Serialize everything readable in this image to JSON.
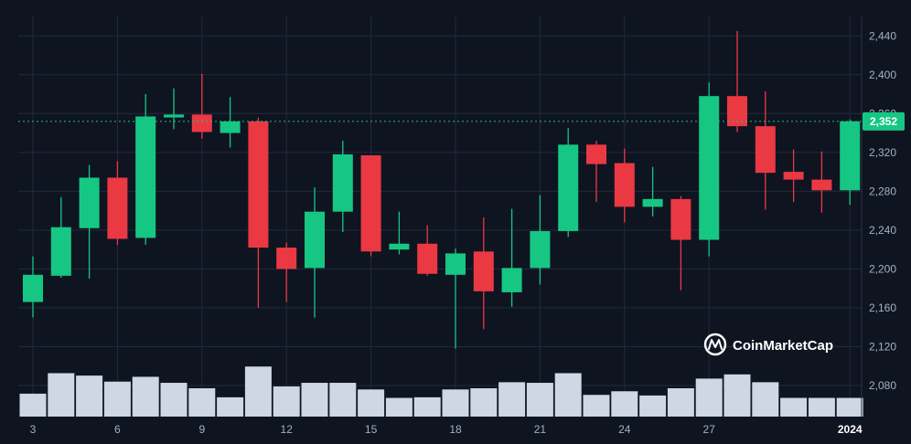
{
  "watermark": {
    "text": "CoinMarketCap",
    "icon": "coinmarketcap-logo-icon"
  },
  "colors": {
    "background": "#0f1421",
    "up": "#16c784",
    "down": "#ea3943",
    "volume": "#cfd6e4",
    "grid": "#222a3a",
    "price_line": "#16c784"
  },
  "chart_data": {
    "type": "candlestick",
    "title": "",
    "xlabel": "",
    "ylabel": "",
    "ylim": [
      2048,
      2460
    ],
    "y_ticks": [
      "2,080",
      "2,120",
      "2,160",
      "2,200",
      "2,240",
      "2,280",
      "2,320",
      "2,360",
      "2,400",
      "2,440"
    ],
    "y_tick_values": [
      2080,
      2120,
      2160,
      2200,
      2240,
      2280,
      2320,
      2360,
      2400,
      2440
    ],
    "x_ticks": [
      {
        "label": "3",
        "day": 3
      },
      {
        "label": "6",
        "day": 6
      },
      {
        "label": "9",
        "day": 9
      },
      {
        "label": "12",
        "day": 12
      },
      {
        "label": "15",
        "day": 15
      },
      {
        "label": "18",
        "day": 18
      },
      {
        "label": "21",
        "day": 21
      },
      {
        "label": "24",
        "day": 24
      },
      {
        "label": "27",
        "day": 27
      },
      {
        "label": "2024",
        "day": 32,
        "bold": true
      }
    ],
    "current_price": 2352,
    "current_price_label": "2,352",
    "grid": true,
    "volume_scale": [
      0,
      100
    ],
    "candles": [
      {
        "day": 3,
        "open": 2166,
        "high": 2213,
        "low": 2150,
        "close": 2194,
        "volume": 38
      },
      {
        "day": 4,
        "open": 2193,
        "high": 2274,
        "low": 2191,
        "close": 2243,
        "volume": 72
      },
      {
        "day": 5,
        "open": 2242,
        "high": 2307,
        "low": 2190,
        "close": 2294,
        "volume": 68
      },
      {
        "day": 6,
        "open": 2294,
        "high": 2311,
        "low": 2225,
        "close": 2231,
        "volume": 58
      },
      {
        "day": 7,
        "open": 2232,
        "high": 2380,
        "low": 2225,
        "close": 2357,
        "volume": 66
      },
      {
        "day": 8,
        "open": 2356,
        "high": 2386,
        "low": 2344,
        "close": 2359,
        "volume": 56
      },
      {
        "day": 9,
        "open": 2359,
        "high": 2401,
        "low": 2334,
        "close": 2341,
        "volume": 47
      },
      {
        "day": 10,
        "open": 2340,
        "high": 2377,
        "low": 2325,
        "close": 2352,
        "volume": 32
      },
      {
        "day": 11,
        "open": 2352,
        "high": 2356,
        "low": 2160,
        "close": 2222,
        "volume": 83
      },
      {
        "day": 12,
        "open": 2222,
        "high": 2227,
        "low": 2166,
        "close": 2200,
        "volume": 50
      },
      {
        "day": 13,
        "open": 2201,
        "high": 2284,
        "low": 2150,
        "close": 2259,
        "volume": 56
      },
      {
        "day": 14,
        "open": 2259,
        "high": 2332,
        "low": 2238,
        "close": 2318,
        "volume": 56
      },
      {
        "day": 15,
        "open": 2317,
        "high": 2317,
        "low": 2213,
        "close": 2218,
        "volume": 45
      },
      {
        "day": 16,
        "open": 2220,
        "high": 2259,
        "low": 2215,
        "close": 2226,
        "volume": 31
      },
      {
        "day": 17,
        "open": 2226,
        "high": 2245,
        "low": 2193,
        "close": 2195,
        "volume": 32
      },
      {
        "day": 18,
        "open": 2194,
        "high": 2221,
        "low": 2118,
        "close": 2216,
        "volume": 45
      },
      {
        "day": 19,
        "open": 2218,
        "high": 2253,
        "low": 2138,
        "close": 2177,
        "volume": 47
      },
      {
        "day": 20,
        "open": 2176,
        "high": 2262,
        "low": 2161,
        "close": 2201,
        "volume": 57
      },
      {
        "day": 21,
        "open": 2201,
        "high": 2276,
        "low": 2184,
        "close": 2239,
        "volume": 56
      },
      {
        "day": 22,
        "open": 2239,
        "high": 2345,
        "low": 2233,
        "close": 2328,
        "volume": 72
      },
      {
        "day": 23,
        "open": 2328,
        "high": 2332,
        "low": 2269,
        "close": 2308,
        "volume": 36
      },
      {
        "day": 24,
        "open": 2309,
        "high": 2324,
        "low": 2248,
        "close": 2264,
        "volume": 42
      },
      {
        "day": 25,
        "open": 2264,
        "high": 2305,
        "low": 2254,
        "close": 2272,
        "volume": 35
      },
      {
        "day": 26,
        "open": 2272,
        "high": 2275,
        "low": 2178,
        "close": 2230,
        "volume": 47
      },
      {
        "day": 27,
        "open": 2230,
        "high": 2392,
        "low": 2213,
        "close": 2378,
        "volume": 63
      },
      {
        "day": 28,
        "open": 2378,
        "high": 2445,
        "low": 2341,
        "close": 2347,
        "volume": 70
      },
      {
        "day": 29,
        "open": 2347,
        "high": 2383,
        "low": 2261,
        "close": 2299,
        "volume": 57
      },
      {
        "day": 30,
        "open": 2300,
        "high": 2323,
        "low": 2269,
        "close": 2292,
        "volume": 31
      },
      {
        "day": 31,
        "open": 2292,
        "high": 2321,
        "low": 2258,
        "close": 2281,
        "volume": 31
      },
      {
        "day": 32,
        "open": 2281,
        "high": 2354,
        "low": 2266,
        "close": 2352,
        "volume": 31
      }
    ]
  }
}
